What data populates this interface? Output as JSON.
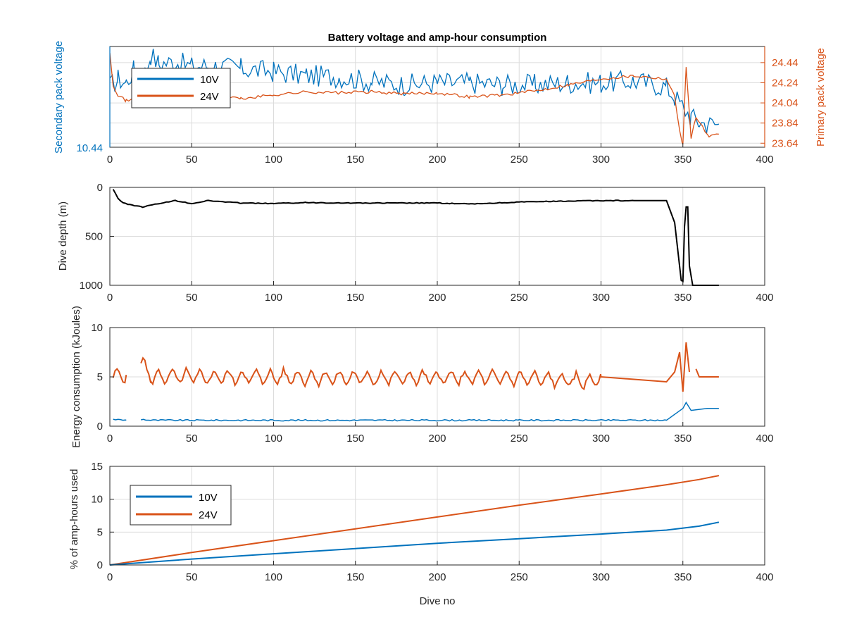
{
  "colors": {
    "series_10V": "#0072BD",
    "series_24V": "#D95319",
    "depth": "#000000",
    "axis": "#262626",
    "grid": "#dcdcdc"
  },
  "chart_data": [
    {
      "type": "line",
      "title": "Battery voltage and amp-hour consumption",
      "xlabel": "",
      "ylabel": "Secondary pack voltage",
      "ylabel_right": "Primary pack voltage",
      "xlim": [
        0,
        400
      ],
      "xticks": [
        "0",
        "50",
        "100",
        "150",
        "200",
        "250",
        "300",
        "350",
        "400"
      ],
      "yticks_left": [
        "10.44"
      ],
      "yticks_right": [
        "24.44",
        "24.24",
        "24.04",
        "23.84",
        "23.64"
      ],
      "ylim_right": [
        23.6,
        24.6
      ],
      "grid": true,
      "legend": "top-left",
      "series": [
        {
          "name": "10V",
          "axis": "left",
          "x": [
            0,
            5,
            10,
            15,
            20,
            25,
            30,
            40,
            50,
            60,
            80,
            100,
            120,
            140,
            160,
            180,
            200,
            220,
            240,
            260,
            280,
            300,
            320,
            340,
            345,
            350,
            355,
            360,
            365,
            372
          ],
          "values": [
            24.2,
            24.28,
            24.24,
            24.38,
            24.26,
            24.52,
            24.43,
            24.45,
            24.4,
            24.41,
            24.38,
            24.35,
            24.31,
            24.3,
            24.25,
            24.22,
            24.24,
            24.24,
            24.22,
            24.22,
            24.24,
            24.24,
            24.26,
            24.2,
            24.1,
            24.0,
            23.9,
            23.85,
            23.83,
            23.83
          ]
        },
        {
          "name": "24V",
          "axis": "right",
          "x": [
            0,
            2,
            5,
            10,
            20,
            40,
            60,
            80,
            100,
            120,
            140,
            160,
            180,
            200,
            220,
            240,
            260,
            280,
            300,
            320,
            340,
            345,
            348,
            350,
            352,
            355,
            358,
            362,
            366,
            372
          ],
          "values": [
            24.55,
            24.22,
            24.12,
            24.06,
            24.1,
            24.09,
            24.14,
            24.08,
            24.12,
            24.15,
            24.14,
            24.15,
            24.13,
            24.14,
            24.1,
            24.12,
            24.16,
            24.22,
            24.28,
            24.31,
            24.28,
            24.1,
            23.78,
            23.62,
            24.4,
            23.7,
            23.9,
            23.8,
            23.7,
            23.73
          ]
        }
      ]
    },
    {
      "type": "line",
      "title": "",
      "xlabel": "",
      "ylabel": "Dive depth (m)",
      "xlim": [
        0,
        400
      ],
      "ylim": [
        0,
        1000
      ],
      "y_reversed": true,
      "xticks": [
        "0",
        "50",
        "100",
        "150",
        "200",
        "250",
        "300",
        "350",
        "400"
      ],
      "yticks": [
        "0",
        "500",
        "1000"
      ],
      "grid": true,
      "series": [
        {
          "x": [
            2,
            5,
            8,
            12,
            20,
            30,
            40,
            50,
            60,
            80,
            100,
            120,
            150,
            180,
            200,
            220,
            250,
            280,
            300,
            320,
            340,
            345,
            349,
            350,
            351,
            352,
            353,
            354,
            356,
            360,
            372
          ],
          "values": [
            20,
            110,
            160,
            175,
            200,
            165,
            135,
            165,
            135,
            160,
            165,
            155,
            160,
            160,
            160,
            170,
            150,
            140,
            135,
            135,
            135,
            360,
            950,
            960,
            400,
            200,
            200,
            800,
            1000,
            1000,
            1000
          ]
        }
      ]
    },
    {
      "type": "line",
      "title": "",
      "xlabel": "",
      "ylabel": "Energy consumption (kJoules)",
      "xlim": [
        0,
        400
      ],
      "ylim": [
        0,
        10
      ],
      "xticks": [
        "0",
        "50",
        "100",
        "150",
        "200",
        "250",
        "300",
        "350",
        "400"
      ],
      "yticks": [
        "0",
        "5",
        "10"
      ],
      "grid": true,
      "series": [
        {
          "name": "10V",
          "x": [
            2,
            10,
            15,
            19,
            25,
            50,
            100,
            150,
            200,
            250,
            295,
            300,
            340,
            345,
            350,
            352,
            355,
            365,
            372
          ],
          "values": [
            0.7,
            0.6,
            null,
            0.7,
            0.6,
            0.6,
            0.6,
            0.6,
            0.6,
            0.6,
            0.6,
            0.6,
            0.6,
            1.2,
            1.8,
            2.4,
            1.6,
            1.8,
            1.8
          ]
        },
        {
          "name": "24V",
          "x": [
            2,
            10,
            15,
            19,
            25,
            50,
            100,
            150,
            200,
            250,
            295,
            300,
            340,
            345,
            348,
            350,
            352,
            354,
            356,
            358,
            360,
            366,
            372
          ],
          "values": [
            5.0,
            5.2,
            null,
            6.6,
            5.0,
            5.0,
            5.0,
            4.9,
            4.9,
            4.9,
            4.5,
            5.0,
            4.5,
            5.5,
            7.5,
            3.5,
            8.5,
            5.5,
            null,
            5.8,
            5.0,
            5.0,
            5.0
          ]
        }
      ]
    },
    {
      "type": "line",
      "title": "",
      "xlabel": "Dive no",
      "ylabel": "% of amp-hours used",
      "xlim": [
        0,
        400
      ],
      "ylim": [
        0,
        15
      ],
      "xticks": [
        "0",
        "50",
        "100",
        "150",
        "200",
        "250",
        "300",
        "350",
        "400"
      ],
      "yticks": [
        "0",
        "5",
        "10",
        "15"
      ],
      "grid": true,
      "legend": "top-left",
      "series": [
        {
          "name": "10V",
          "x": [
            0,
            50,
            100,
            150,
            200,
            250,
            300,
            340,
            360,
            372
          ],
          "values": [
            0,
            0.9,
            1.7,
            2.5,
            3.3,
            4.0,
            4.7,
            5.3,
            5.9,
            6.5
          ]
        },
        {
          "name": "24V",
          "x": [
            0,
            50,
            100,
            150,
            200,
            250,
            300,
            340,
            360,
            372
          ],
          "values": [
            0,
            1.9,
            3.7,
            5.5,
            7.3,
            9.1,
            10.8,
            12.2,
            13.0,
            13.6
          ]
        }
      ]
    }
  ]
}
